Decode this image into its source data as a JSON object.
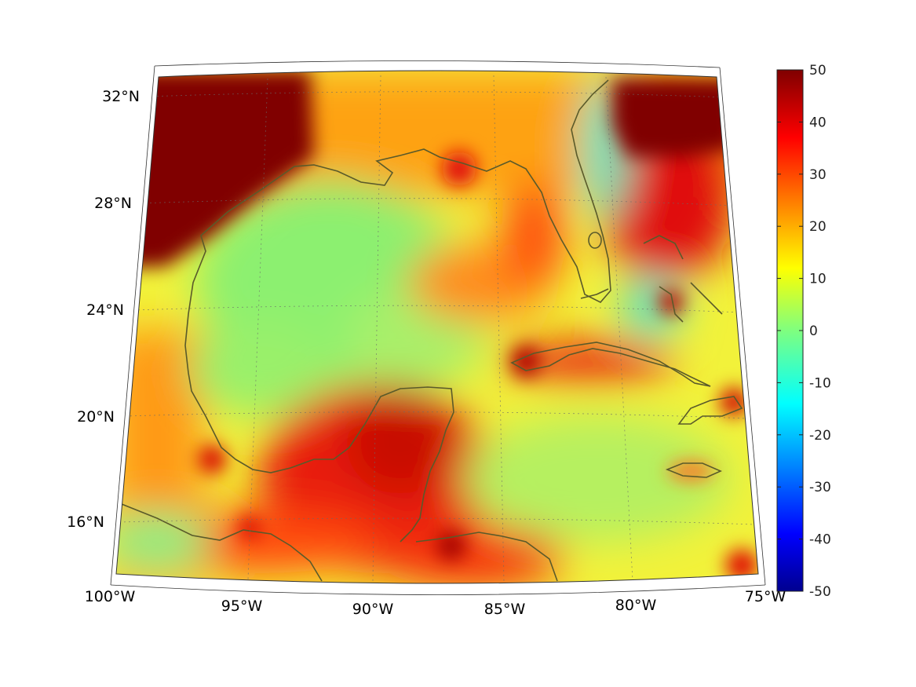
{
  "map": {
    "projection": "conic",
    "lon_range": [
      -100,
      -75
    ],
    "lat_range": [
      14,
      33
    ],
    "grid": true,
    "coastline_color": "#5a5a2a",
    "lon_labels": [
      "100°W",
      "95°W",
      "90°W",
      "85°W",
      "80°W",
      "75°W"
    ],
    "lat_labels": [
      "32°N",
      "28°N",
      "24°N",
      "20°N",
      "16°N"
    ],
    "lon_ticks": [
      -100,
      -95,
      -90,
      -85,
      -80,
      -75
    ],
    "lat_ticks": [
      32,
      28,
      24,
      20,
      16
    ]
  },
  "colorbar": {
    "colormap": "jet",
    "range": [
      -50,
      50
    ],
    "tick_values": [
      50,
      40,
      30,
      20,
      10,
      0,
      -10,
      -20,
      -30,
      -40,
      -50
    ],
    "tick_labels": [
      "50",
      "40",
      "30",
      "20",
      "10",
      "0",
      "-10",
      "-20",
      "-30",
      "-40",
      "-50"
    ],
    "position": "right"
  }
}
